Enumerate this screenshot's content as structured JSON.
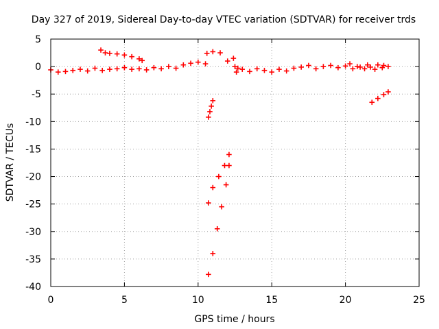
{
  "chart_data": {
    "type": "scatter",
    "title": "Day 327 of 2019, Sidereal Day-to-day VTEC variation (SDTVAR) for receiver trds",
    "xlabel": "GPS time / hours",
    "ylabel": "SDTVAR / TECUs",
    "xlim": [
      0,
      25
    ],
    "ylim": [
      -40,
      5
    ],
    "xticks": [
      0,
      5,
      10,
      15,
      20,
      25
    ],
    "yticks": [
      5,
      0,
      -5,
      -10,
      -15,
      -20,
      -25,
      -30,
      -35,
      -40
    ],
    "grid": true,
    "marker": "plus",
    "color": "#ff0000",
    "segments": [
      {
        "x": [
          0.0,
          0.5,
          1.0,
          1.5,
          2.0,
          2.5,
          3.0,
          3.5,
          4.0,
          4.5,
          5.0,
          5.5,
          6.0,
          6.5,
          7.0,
          7.5,
          8.0,
          8.5,
          9.0,
          9.5,
          10.0,
          10.5
        ],
        "y": [
          -0.6,
          -1.0,
          -0.9,
          -0.7,
          -0.5,
          -0.8,
          -0.3,
          -0.7,
          -0.5,
          -0.4,
          -0.2,
          -0.5,
          -0.4,
          -0.6,
          -0.2,
          -0.4,
          0.0,
          -0.3,
          0.3,
          0.6,
          0.8,
          0.5
        ]
      },
      {
        "x": [
          3.4,
          3.7,
          4.0,
          4.5,
          5.0,
          5.5,
          6.0,
          6.2
        ],
        "y": [
          3.0,
          2.5,
          2.4,
          2.3,
          2.1,
          1.8,
          1.4,
          1.1
        ]
      },
      {
        "x": [
          10.6,
          11.0,
          11.5,
          12.0
        ],
        "y": [
          2.4,
          2.7,
          2.5,
          1.0
        ]
      },
      {
        "x": [
          12.4,
          12.5,
          12.6
        ],
        "y": [
          1.5,
          0.0,
          -1.0
        ]
      },
      {
        "x": [
          12.7,
          13.0,
          13.5,
          14.0,
          14.5,
          15.0,
          15.5,
          16.0,
          16.5,
          17.0,
          17.5,
          18.0,
          18.5,
          19.0,
          19.5,
          20.0,
          20.5,
          21.0,
          21.5,
          22.0,
          22.5,
          22.9
        ],
        "y": [
          -0.3,
          -0.5,
          -0.9,
          -0.4,
          -0.7,
          -1.0,
          -0.5,
          -0.8,
          -0.3,
          -0.1,
          0.2,
          -0.4,
          0.0,
          0.2,
          -0.2,
          0.1,
          -0.4,
          -0.1,
          0.3,
          -0.5,
          -0.2,
          0.0
        ]
      },
      {
        "x": [
          20.3,
          20.8,
          21.3,
          21.7,
          22.2,
          22.6
        ],
        "y": [
          0.5,
          0.0,
          -0.4,
          -0.1,
          0.3,
          0.2
        ]
      },
      {
        "x": [
          10.7,
          10.8,
          10.9,
          11.0
        ],
        "y": [
          -9.2,
          -8.2,
          -7.2,
          -6.2
        ]
      },
      {
        "x": [
          10.7,
          11.0,
          11.4,
          11.8,
          12.1
        ],
        "y": [
          -24.8,
          -22.0,
          -20.0,
          -18.0,
          -16.0
        ]
      },
      {
        "x": [
          10.7,
          11.0,
          11.3,
          11.6,
          11.9,
          12.1
        ],
        "y": [
          -37.8,
          -34.0,
          -29.5,
          -25.5,
          -21.5,
          -18.0
        ]
      },
      {
        "x": [
          21.8,
          22.2,
          22.6,
          22.9
        ],
        "y": [
          -6.5,
          -5.8,
          -5.1,
          -4.6
        ]
      }
    ]
  }
}
